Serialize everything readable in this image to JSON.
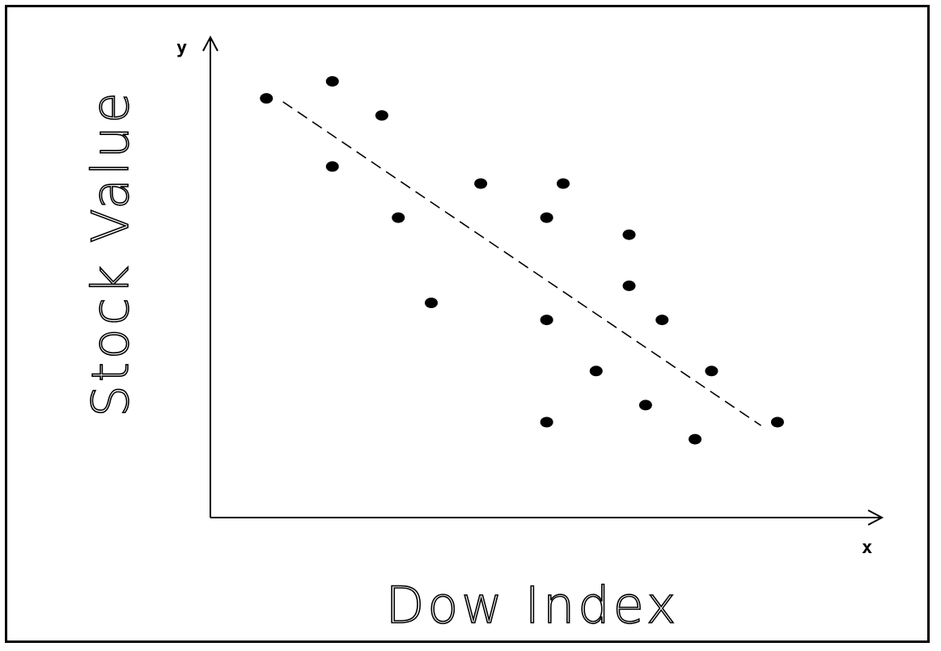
{
  "chart_data": {
    "type": "scatter",
    "xlabel": "Dow Index",
    "ylabel": "Stock Value",
    "x_axis_letter": "x",
    "y_axis_letter": "y",
    "xlim": [
      0,
      20
    ],
    "ylim": [
      0,
      14
    ],
    "grid": false,
    "legend": "none",
    "points": [
      {
        "x": 1.7,
        "y": 12.3
      },
      {
        "x": 3.7,
        "y": 12.8
      },
      {
        "x": 3.7,
        "y": 10.3
      },
      {
        "x": 5.2,
        "y": 11.8
      },
      {
        "x": 5.7,
        "y": 8.8
      },
      {
        "x": 6.7,
        "y": 6.3
      },
      {
        "x": 8.2,
        "y": 9.8
      },
      {
        "x": 10.2,
        "y": 8.8
      },
      {
        "x": 10.2,
        "y": 5.8
      },
      {
        "x": 10.2,
        "y": 2.8
      },
      {
        "x": 10.7,
        "y": 9.8
      },
      {
        "x": 11.7,
        "y": 4.3
      },
      {
        "x": 12.7,
        "y": 8.3
      },
      {
        "x": 12.7,
        "y": 6.8
      },
      {
        "x": 13.2,
        "y": 3.3
      },
      {
        "x": 13.7,
        "y": 5.8
      },
      {
        "x": 14.7,
        "y": 2.3
      },
      {
        "x": 15.2,
        "y": 4.3
      },
      {
        "x": 17.2,
        "y": 2.8
      }
    ],
    "trendline": {
      "style": "dashed",
      "x": [
        2.2,
        16.7
      ],
      "y": [
        12.2,
        2.7
      ]
    },
    "colors": {
      "points": "#000000",
      "axes": "#000000",
      "background": "#ffffff"
    }
  }
}
